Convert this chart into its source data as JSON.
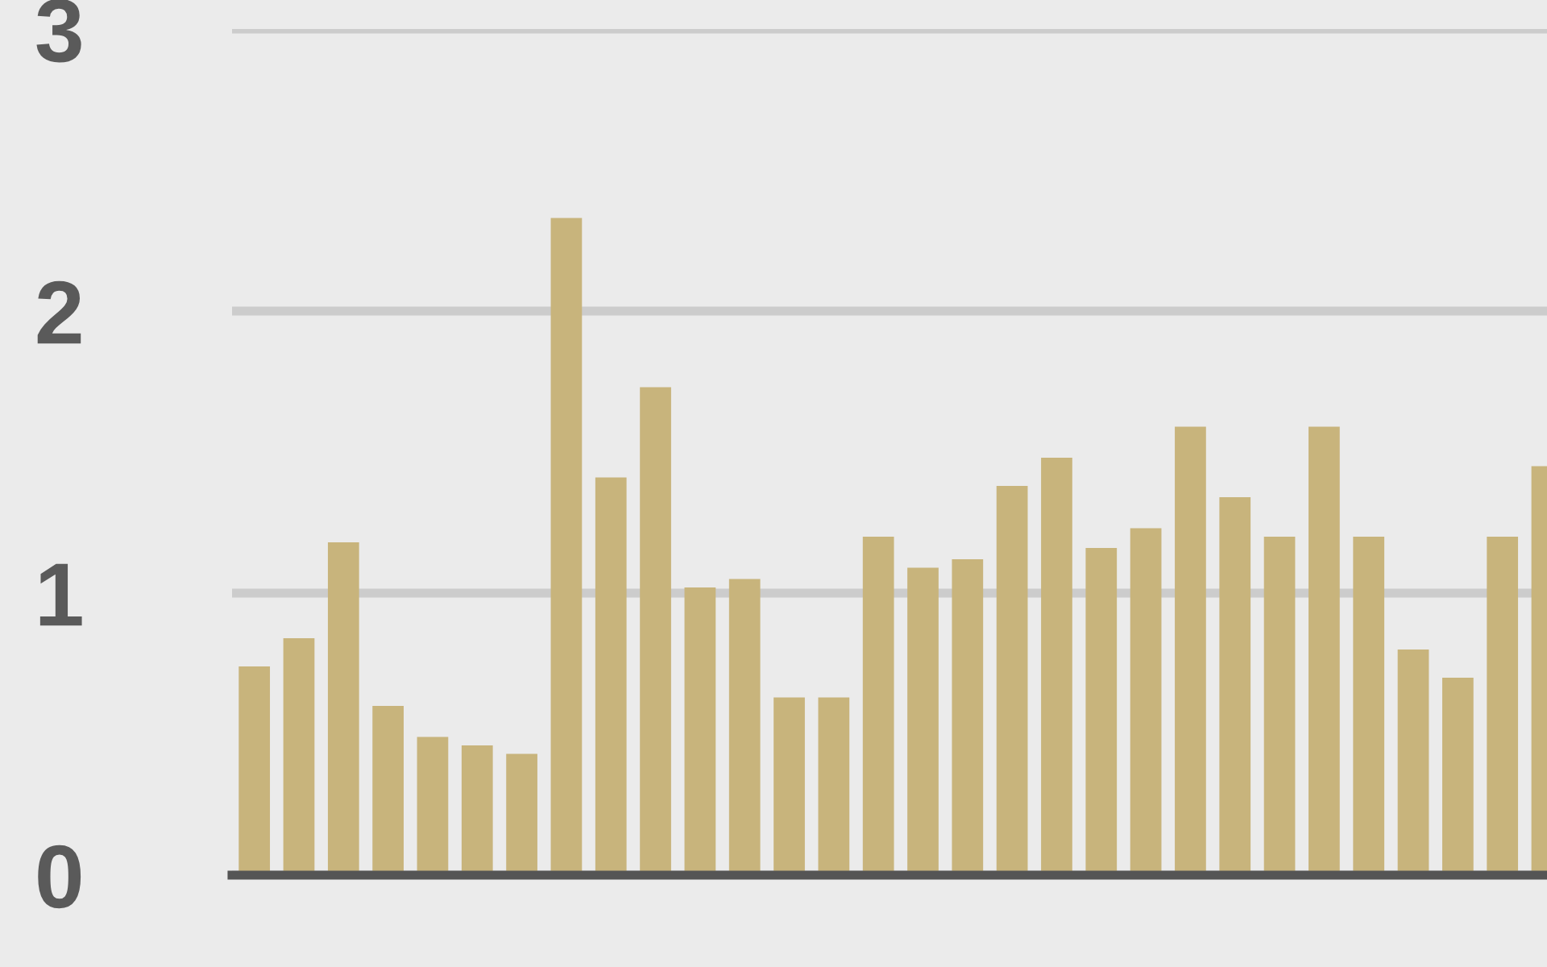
{
  "chart_data": {
    "type": "bar",
    "categories": [
      null,
      null,
      null,
      null,
      null,
      null,
      null,
      null,
      null,
      null,
      null,
      null,
      null,
      null,
      null,
      null,
      null,
      null,
      null,
      null,
      null,
      null,
      null,
      null,
      null,
      null,
      null,
      null,
      null,
      null
    ],
    "values": [
      0.74,
      0.84,
      1.18,
      0.6,
      0.49,
      0.46,
      0.43,
      2.33,
      1.41,
      1.73,
      1.02,
      1.05,
      0.63,
      0.63,
      1.2,
      1.09,
      1.12,
      1.38,
      1.48,
      1.16,
      1.23,
      1.59,
      1.34,
      1.2,
      1.59,
      1.2,
      0.8,
      0.7,
      1.2,
      1.45
    ],
    "color": "#c8b47c",
    "ylim": [
      0,
      3
    ],
    "yticks": [
      0,
      1,
      2,
      3
    ],
    "grid": "y",
    "tick_labels": "y"
  }
}
